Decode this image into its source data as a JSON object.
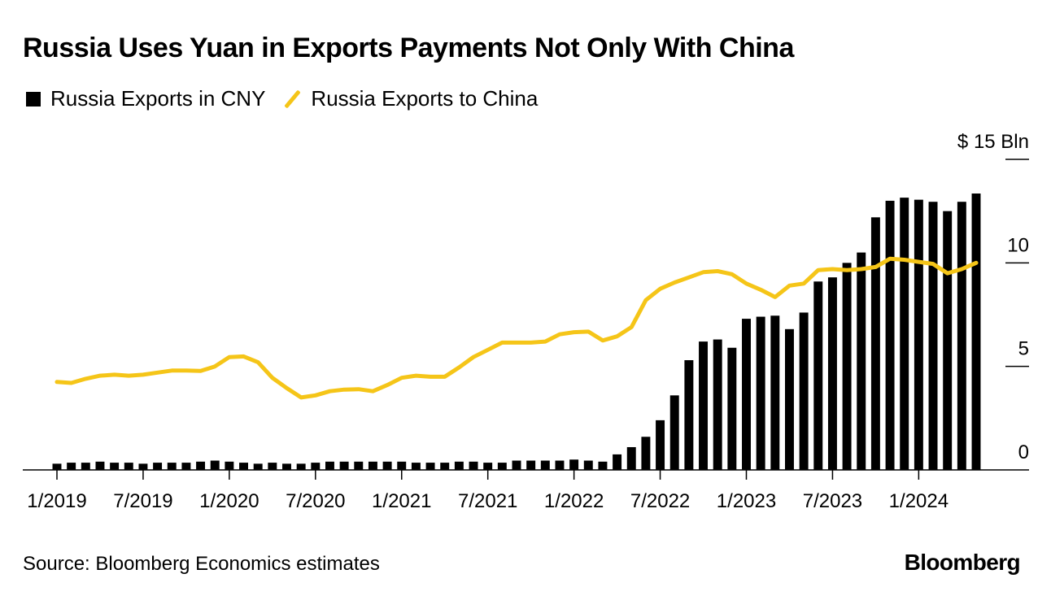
{
  "title": "Russia Uses Yuan in Exports Payments Not Only With China",
  "legend": {
    "series1": "Russia Exports in CNY",
    "series2": "Russia Exports to China"
  },
  "source": "Source: Bloomberg Economics estimates",
  "brand": "Bloomberg",
  "colors": {
    "bars": "#000000",
    "line": "#f5c518",
    "axis": "#000000"
  },
  "chart_data": {
    "type": "bar",
    "title": "Russia Uses Yuan in Exports Payments Not Only With China",
    "ylabel": "",
    "y_unit_label": "$ 15 Bln",
    "ylim": [
      0,
      15
    ],
    "yticks": [
      0,
      5,
      10,
      15
    ],
    "ytick_labels": [
      "0",
      "5",
      "10",
      "$ 15 Bln"
    ],
    "y_axis_side": "right",
    "grid": false,
    "legend_position": "top-left",
    "x_ticks": [
      {
        "label": "1/2019",
        "index": 0
      },
      {
        "label": "7/2019",
        "index": 6
      },
      {
        "label": "1/2020",
        "index": 12
      },
      {
        "label": "7/2020",
        "index": 18
      },
      {
        "label": "1/2021",
        "index": 24
      },
      {
        "label": "7/2021",
        "index": 30
      },
      {
        "label": "1/2022",
        "index": 36
      },
      {
        "label": "7/2022",
        "index": 42
      },
      {
        "label": "1/2023",
        "index": 48
      },
      {
        "label": "7/2023",
        "index": 54
      },
      {
        "label": "1/2024",
        "index": 60
      }
    ],
    "categories": [
      "1/2019",
      "2/2019",
      "3/2019",
      "4/2019",
      "5/2019",
      "6/2019",
      "7/2019",
      "8/2019",
      "9/2019",
      "10/2019",
      "11/2019",
      "12/2019",
      "1/2020",
      "2/2020",
      "3/2020",
      "4/2020",
      "5/2020",
      "6/2020",
      "7/2020",
      "8/2020",
      "9/2020",
      "10/2020",
      "11/2020",
      "12/2020",
      "1/2021",
      "2/2021",
      "3/2021",
      "4/2021",
      "5/2021",
      "6/2021",
      "7/2021",
      "8/2021",
      "9/2021",
      "10/2021",
      "11/2021",
      "12/2021",
      "1/2022",
      "2/2022",
      "3/2022",
      "4/2022",
      "5/2022",
      "6/2022",
      "7/2022",
      "8/2022",
      "9/2022",
      "10/2022",
      "11/2022",
      "12/2022",
      "1/2023",
      "2/2023",
      "3/2023",
      "4/2023",
      "5/2023",
      "6/2023",
      "7/2023",
      "8/2023",
      "9/2023",
      "10/2023",
      "11/2023",
      "12/2023",
      "1/2024",
      "2/2024",
      "3/2024",
      "4/2024",
      "5/2024"
    ],
    "series": [
      {
        "name": "Russia Exports in CNY",
        "type": "bar",
        "values": [
          0.3,
          0.35,
          0.35,
          0.4,
          0.35,
          0.35,
          0.3,
          0.35,
          0.35,
          0.35,
          0.4,
          0.45,
          0.4,
          0.35,
          0.3,
          0.35,
          0.3,
          0.3,
          0.35,
          0.4,
          0.4,
          0.4,
          0.4,
          0.4,
          0.4,
          0.35,
          0.35,
          0.35,
          0.4,
          0.4,
          0.35,
          0.35,
          0.45,
          0.45,
          0.45,
          0.45,
          0.5,
          0.45,
          0.4,
          0.75,
          1.1,
          1.6,
          2.4,
          3.6,
          5.3,
          6.2,
          6.3,
          5.9,
          7.3,
          7.4,
          7.45,
          6.8,
          7.6,
          9.1,
          9.3,
          10.0,
          10.5,
          12.2,
          13.0,
          13.15,
          13.05,
          12.95,
          12.5,
          12.95,
          13.35
        ]
      },
      {
        "name": "Russia Exports to China",
        "type": "line",
        "values": [
          4.25,
          4.2,
          4.4,
          4.55,
          4.6,
          4.55,
          4.6,
          4.7,
          4.8,
          4.8,
          4.78,
          5.0,
          5.45,
          5.48,
          5.2,
          4.45,
          3.95,
          3.5,
          3.6,
          3.8,
          3.88,
          3.9,
          3.8,
          4.1,
          4.45,
          4.55,
          4.5,
          4.5,
          4.95,
          5.45,
          5.8,
          6.15,
          6.15,
          6.15,
          6.2,
          6.55,
          6.65,
          6.68,
          6.25,
          6.45,
          6.9,
          8.2,
          8.75,
          9.05,
          9.3,
          9.55,
          9.6,
          9.45,
          9.0,
          8.7,
          8.35,
          8.9,
          9.0,
          9.65,
          9.7,
          9.65,
          9.7,
          9.8,
          10.2,
          10.15,
          10.05,
          9.95,
          9.5,
          9.7,
          10.0
        ]
      }
    ]
  }
}
